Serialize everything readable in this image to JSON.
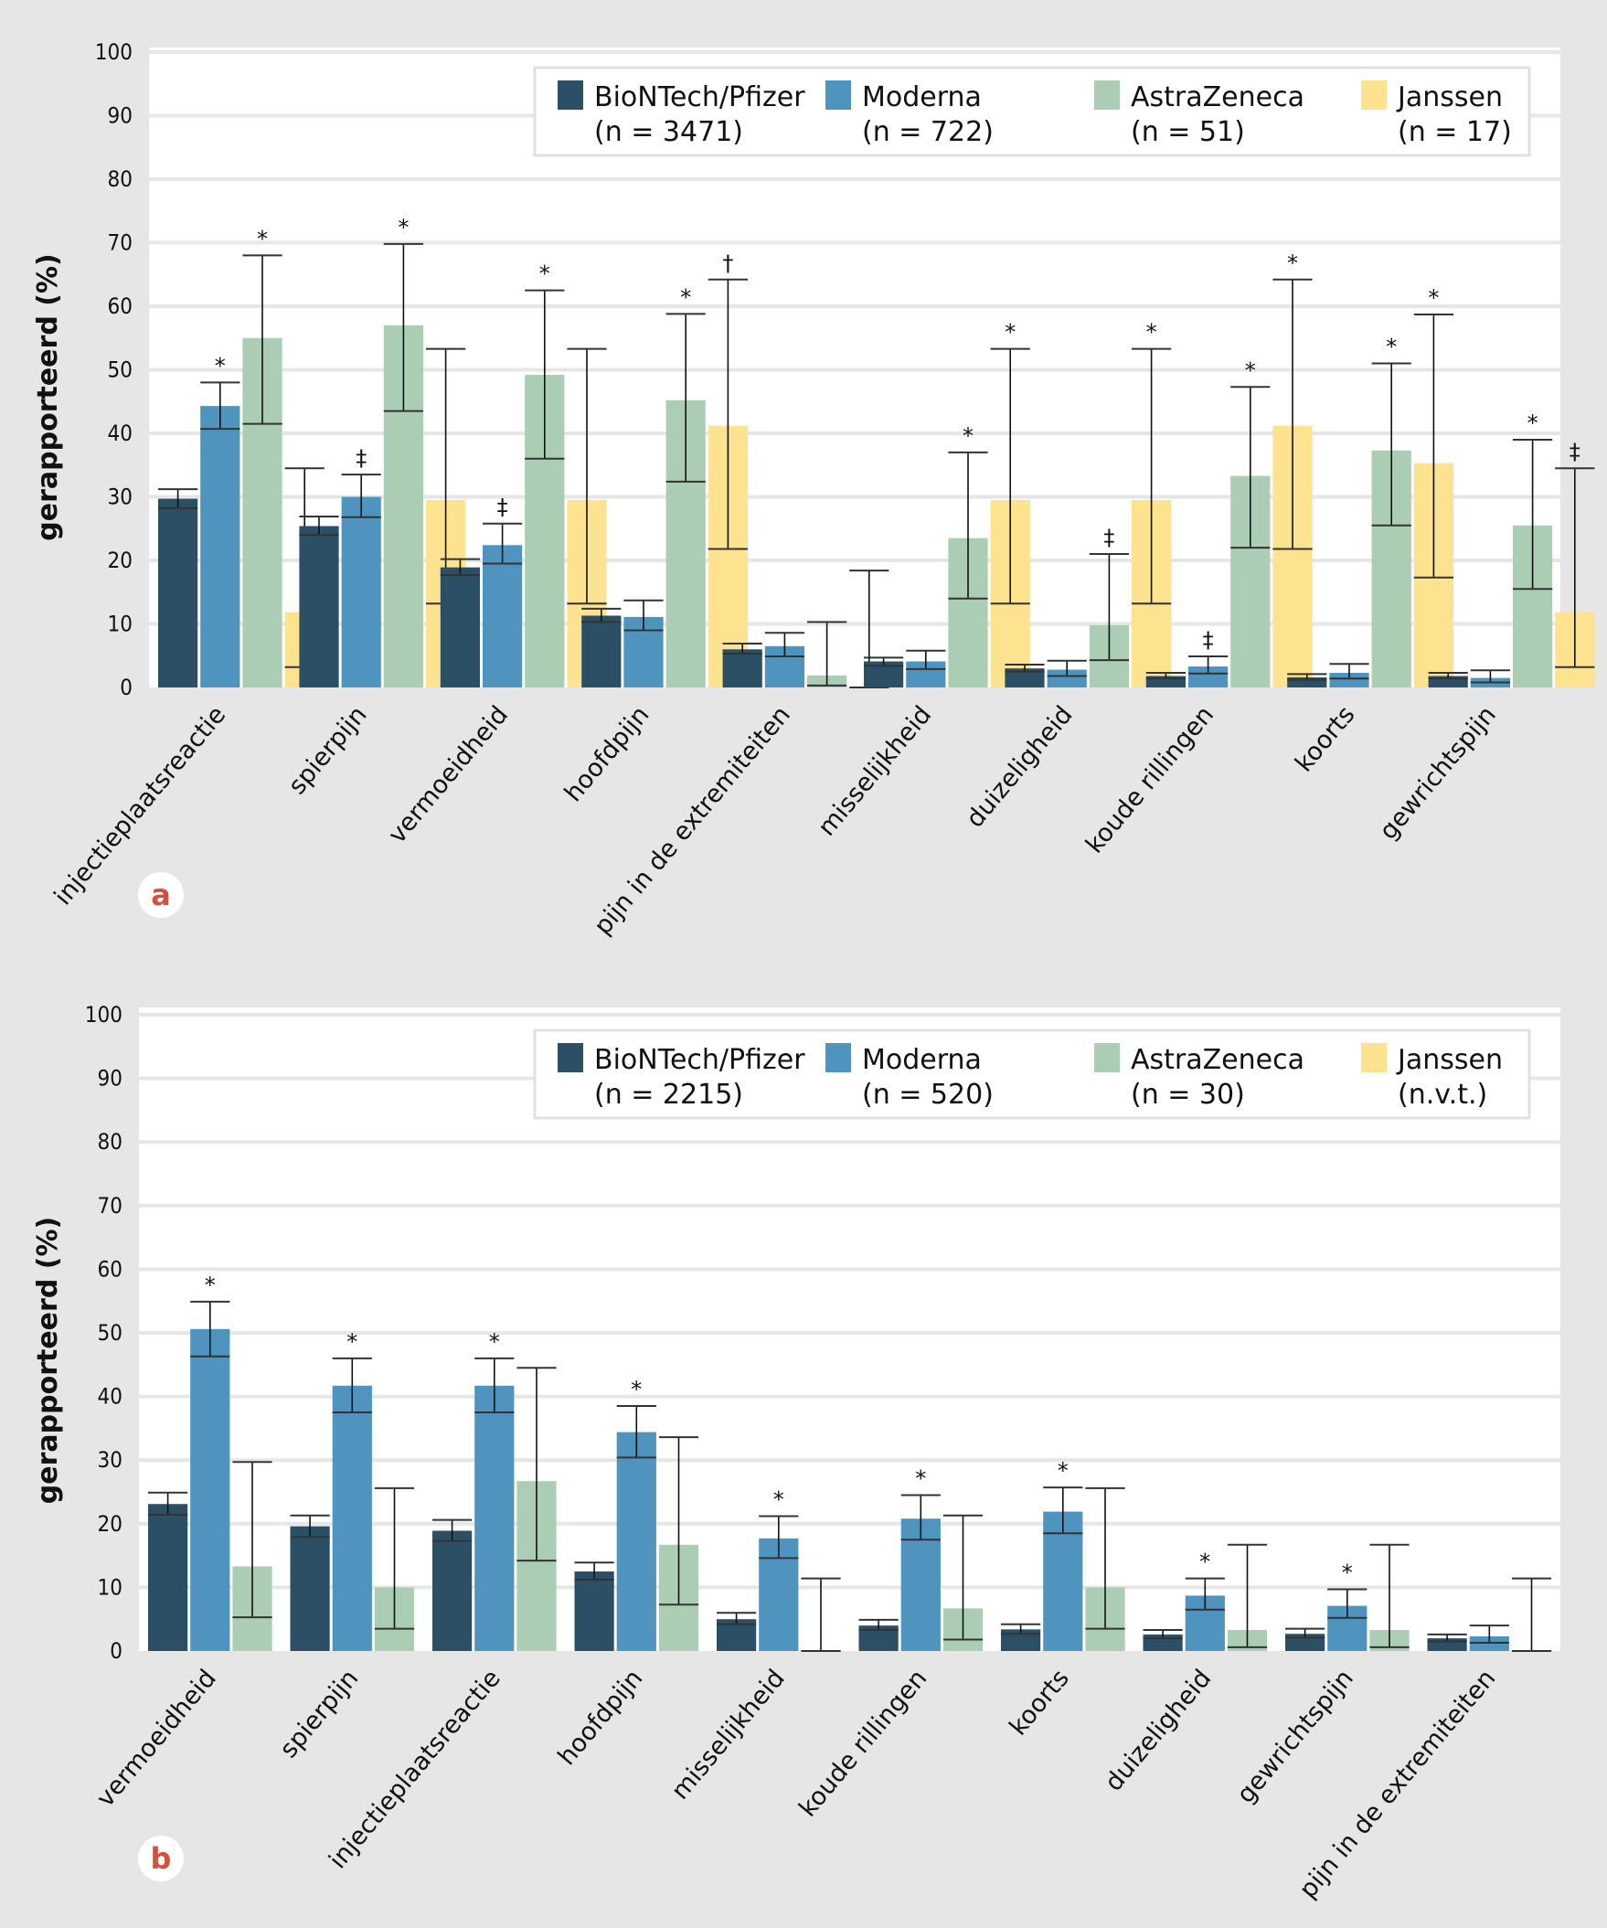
{
  "colors": {
    "background": "#e6e6e6",
    "plot": "#ffffff",
    "grid": "#e6e6e6",
    "BioNTech/Pfizer": "#2b5066",
    "Moderna": "#4e94bf",
    "AstraZeneca": "#aacdb4",
    "Janssen": "#fde38f",
    "panel_label": "#d4503a"
  },
  "chart_data": [
    {
      "panel": "a",
      "type": "bar",
      "ylabel": "gerapporteerd (%)",
      "ylim": [
        0,
        100
      ],
      "yticks": [
        0,
        10,
        20,
        30,
        40,
        50,
        60,
        70,
        80,
        90,
        100
      ],
      "grid": true,
      "legend_position": "top-right",
      "legend": [
        {
          "name": "BioNTech/Pfizer",
          "n": "(n = 3471)"
        },
        {
          "name": "Moderna",
          "n": "(n = 722)"
        },
        {
          "name": "AstraZeneca",
          "n": "(n = 51)"
        },
        {
          "name": "Janssen",
          "n": "(n = 17)"
        }
      ],
      "categories": [
        "injectieplaatsreactie",
        "spierpijn",
        "vermoeidheid",
        "hoofdpijn",
        "pijn in de extremiteiten",
        "misselijkheid",
        "duizeligheid",
        "koude rillingen",
        "koorts",
        "gewrichtspijn"
      ],
      "series": [
        {
          "name": "BioNTech/Pfizer",
          "values": [
            29.7,
            25.4,
            18.9,
            11.3,
            6.0,
            4.1,
            3.0,
            1.8,
            1.6,
            1.8
          ],
          "ci_low": [
            28.2,
            24.0,
            17.7,
            10.3,
            5.3,
            3.4,
            2.5,
            1.4,
            1.2,
            1.4
          ],
          "ci_high": [
            31.2,
            26.9,
            20.2,
            12.4,
            6.9,
            4.7,
            3.6,
            2.3,
            2.1,
            2.3
          ],
          "markers": [
            "",
            "",
            "",
            "",
            "",
            "",
            "",
            "",
            "",
            ""
          ]
        },
        {
          "name": "Moderna",
          "values": [
            44.3,
            30.0,
            22.4,
            11.1,
            6.5,
            4.1,
            2.8,
            3.3,
            2.3,
            1.5
          ],
          "ci_low": [
            40.7,
            26.8,
            19.5,
            9.0,
            4.9,
            2.9,
            1.8,
            2.2,
            1.4,
            0.8
          ],
          "ci_high": [
            48.0,
            33.5,
            25.8,
            13.7,
            8.6,
            5.8,
            4.2,
            4.9,
            3.7,
            2.7
          ],
          "markers": [
            "*",
            "‡",
            "‡",
            "",
            "",
            "",
            "",
            "‡",
            "",
            ""
          ]
        },
        {
          "name": "AstraZeneca",
          "values": [
            55.0,
            57.0,
            49.2,
            45.2,
            1.9,
            23.5,
            9.8,
            33.3,
            37.3,
            25.5
          ],
          "ci_low": [
            41.5,
            43.5,
            36.0,
            32.4,
            0.3,
            14.0,
            4.3,
            22.0,
            25.5,
            15.5
          ],
          "ci_high": [
            68.0,
            69.8,
            62.5,
            58.8,
            10.3,
            37.0,
            21.0,
            47.3,
            51.0,
            39.0
          ],
          "markers": [
            "*",
            "*",
            "*",
            "*",
            "",
            "*",
            "‡",
            "*",
            "*",
            "*"
          ]
        },
        {
          "name": "Janssen",
          "values": [
            11.8,
            29.5,
            29.5,
            41.2,
            0.0,
            29.5,
            29.5,
            41.2,
            35.3,
            11.8
          ],
          "ci_low": [
            3.2,
            13.2,
            13.2,
            21.8,
            0.0,
            13.2,
            13.2,
            21.8,
            17.3,
            3.2
          ],
          "ci_high": [
            34.5,
            53.3,
            53.3,
            64.2,
            18.4,
            53.3,
            53.3,
            64.2,
            58.7,
            34.5
          ],
          "markers": [
            "",
            "",
            "",
            "†",
            "",
            "*",
            "*",
            "*",
            "*",
            "‡"
          ]
        }
      ]
    },
    {
      "panel": "b",
      "type": "bar",
      "ylabel": "gerapporteerd (%)",
      "ylim": [
        0,
        100
      ],
      "yticks": [
        0,
        10,
        20,
        30,
        40,
        50,
        60,
        70,
        80,
        90,
        100
      ],
      "grid": true,
      "legend_position": "top-right",
      "legend": [
        {
          "name": "BioNTech/Pfizer",
          "n": "(n = 2215)"
        },
        {
          "name": "Moderna",
          "n": "(n = 520)"
        },
        {
          "name": "AstraZeneca",
          "n": "(n = 30)"
        },
        {
          "name": "Janssen",
          "n": "(n.v.t.)"
        }
      ],
      "categories": [
        "vermoeidheid",
        "spierpijn",
        "injectieplaatsreactie",
        "hoofdpijn",
        "misselijkheid",
        "koude rillingen",
        "koorts",
        "duizeligheid",
        "gewrichtspijn",
        "pijn in de extremiteiten"
      ],
      "series": [
        {
          "name": "BioNTech/Pfizer",
          "values": [
            23.1,
            19.6,
            18.9,
            12.5,
            5.0,
            4.0,
            3.4,
            2.6,
            2.7,
            2.0
          ],
          "ci_low": [
            21.4,
            17.9,
            17.3,
            11.2,
            4.2,
            3.3,
            2.7,
            2.0,
            2.1,
            1.5
          ],
          "ci_high": [
            24.9,
            21.3,
            20.6,
            13.9,
            6.0,
            4.9,
            4.2,
            3.3,
            3.5,
            2.6
          ],
          "markers": [
            "",
            "",
            "",
            "",
            "",
            "",
            "",
            "",
            "",
            ""
          ]
        },
        {
          "name": "Moderna",
          "values": [
            50.6,
            41.7,
            41.7,
            34.4,
            17.7,
            20.8,
            21.9,
            8.7,
            7.1,
            2.3
          ],
          "ci_low": [
            46.3,
            37.5,
            37.5,
            30.4,
            14.6,
            17.5,
            18.5,
            6.5,
            5.2,
            1.3
          ],
          "ci_high": [
            54.9,
            46.0,
            46.0,
            38.5,
            21.2,
            24.5,
            25.7,
            11.4,
            9.7,
            4.0
          ],
          "markers": [
            "*",
            "*",
            "*",
            "*",
            "*",
            "*",
            "*",
            "*",
            "*",
            ""
          ]
        },
        {
          "name": "AstraZeneca",
          "values": [
            13.3,
            10.0,
            26.7,
            16.7,
            0.0,
            6.7,
            10.0,
            3.3,
            3.3,
            0.0
          ],
          "ci_low": [
            5.3,
            3.5,
            14.2,
            7.3,
            0.0,
            1.8,
            3.5,
            0.6,
            0.6,
            0.0
          ],
          "ci_high": [
            29.7,
            25.6,
            44.5,
            33.6,
            11.4,
            21.3,
            25.6,
            16.7,
            16.7,
            11.4
          ],
          "markers": [
            "",
            "",
            "",
            "",
            "",
            "",
            "",
            "",
            "",
            ""
          ]
        }
      ]
    }
  ]
}
